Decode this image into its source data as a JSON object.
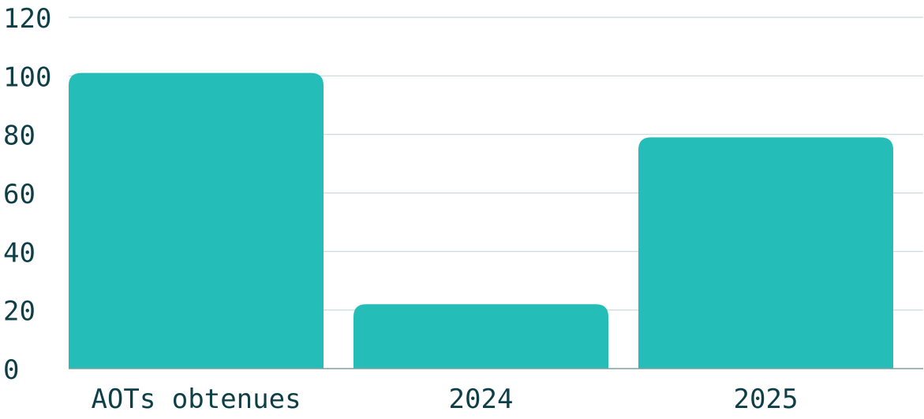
{
  "chart_data": {
    "type": "bar",
    "title": "",
    "xlabel": "",
    "ylabel": "",
    "categories": [
      "AOTs obtenues",
      "2024",
      "2025"
    ],
    "values": [
      101,
      22,
      79
    ],
    "ylim": [
      0,
      120
    ],
    "yticks": [
      0,
      20,
      40,
      60,
      80,
      100,
      120
    ],
    "grid": true,
    "legend": "none",
    "colors": {
      "bar": "#24BDB7",
      "grid": "#C8D7D7",
      "axis": "#7FA0A0",
      "text": "#0E3F47"
    }
  }
}
